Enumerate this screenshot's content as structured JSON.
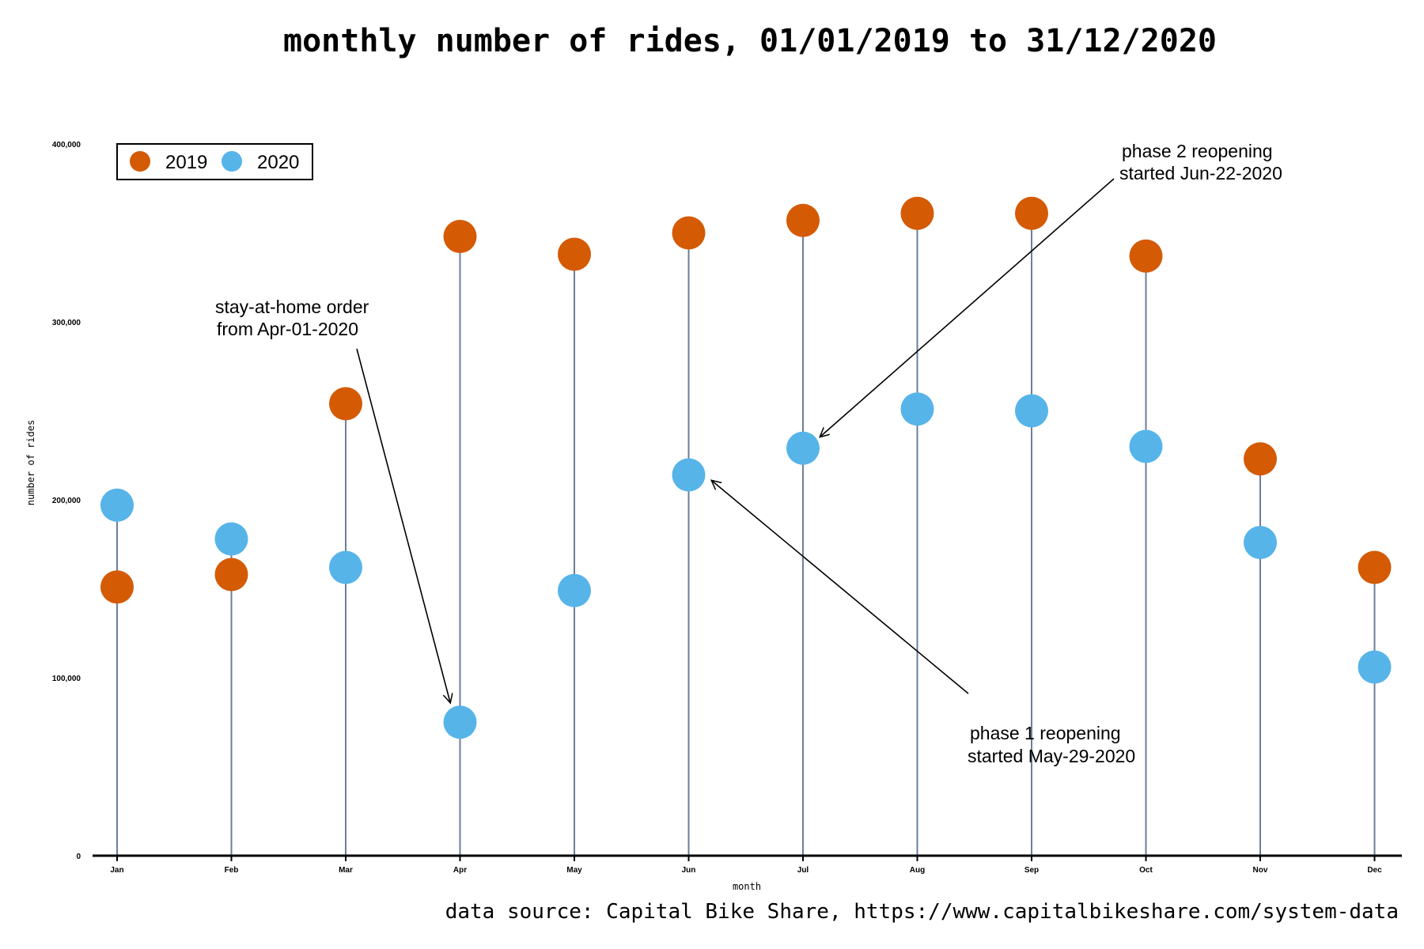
{
  "colors": {
    "series_2019": "#d45a04",
    "series_2020": "#56b4e9",
    "stem": "#6b7f99",
    "axis": "#000000"
  },
  "source_note": "data source: Capital Bike Share, https://www.capitalbikeshare.com/system-data",
  "chart_data": {
    "type": "scatter",
    "title": "monthly number of rides, 01/01/2019 to 31/12/2020",
    "xlabel": "month",
    "ylabel": "number of rides",
    "categories": [
      "Jan",
      "Feb",
      "Mar",
      "Apr",
      "May",
      "Jun",
      "Jul",
      "Aug",
      "Sep",
      "Oct",
      "Nov",
      "Dec"
    ],
    "ylim": [
      0,
      400000
    ],
    "yticks": [
      0,
      100000,
      200000,
      300000,
      400000
    ],
    "ytick_labels": [
      "0",
      "100,000",
      "200,000",
      "300,000",
      "400,000"
    ],
    "grid": false,
    "legend_position": "top-left",
    "series": [
      {
        "name": "2019",
        "values": [
          151000,
          158000,
          254000,
          348000,
          338000,
          350000,
          357000,
          361000,
          361000,
          337000,
          223000,
          162000
        ]
      },
      {
        "name": "2020",
        "values": [
          197000,
          178000,
          162000,
          75000,
          149000,
          214000,
          229000,
          251000,
          250000,
          230000,
          176000,
          106000
        ]
      }
    ],
    "annotations": [
      {
        "lines": [
          "stay-at-home order",
          "from Apr-01-2020"
        ],
        "target_month": "Apr",
        "target_value": 85000
      },
      {
        "lines": [
          "phase 1 reopening",
          "started May-29-2020"
        ],
        "target_month": "Jun",
        "target_value": 212000
      },
      {
        "lines": [
          "phase 2 reopening",
          "started Jun-22-2020"
        ],
        "target_month": "Jul",
        "target_value": 235000
      }
    ]
  }
}
